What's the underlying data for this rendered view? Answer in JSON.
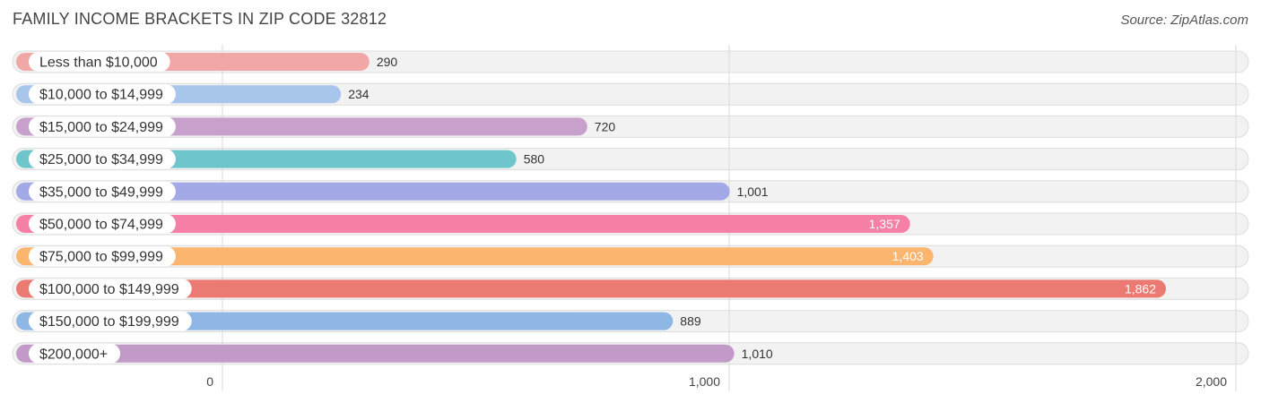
{
  "header": {
    "title": "FAMILY INCOME BRACKETS IN ZIP CODE 32812",
    "source": "Source: ZipAtlas.com"
  },
  "chart_data": {
    "type": "bar",
    "orientation": "horizontal",
    "title": "FAMILY INCOME BRACKETS IN ZIP CODE 32812",
    "categories": [
      "Less than $10,000",
      "$10,000 to $14,999",
      "$15,000 to $24,999",
      "$25,000 to $34,999",
      "$35,000 to $49,999",
      "$50,000 to $74,999",
      "$75,000 to $99,999",
      "$100,000 to $149,999",
      "$150,000 to $199,999",
      "$200,000+"
    ],
    "values": [
      290,
      234,
      720,
      580,
      1001,
      1357,
      1403,
      1862,
      889,
      1010
    ],
    "value_labels": [
      "290",
      "234",
      "720",
      "580",
      "1,001",
      "1,357",
      "1,403",
      "1,862",
      "889",
      "1,010"
    ],
    "colors": [
      "#f2a7a7",
      "#a8c6ec",
      "#c7a1cb",
      "#6fc5cc",
      "#a3a9e6",
      "#f67fa6",
      "#fbb56f",
      "#ea7a72",
      "#8fb7e6",
      "#c29ac8"
    ],
    "xlim": [
      0,
      2000
    ],
    "xticks": [
      0,
      1000,
      2000
    ],
    "xtick_labels": [
      "0",
      "1,000",
      "2,000"
    ],
    "grid": true
  }
}
